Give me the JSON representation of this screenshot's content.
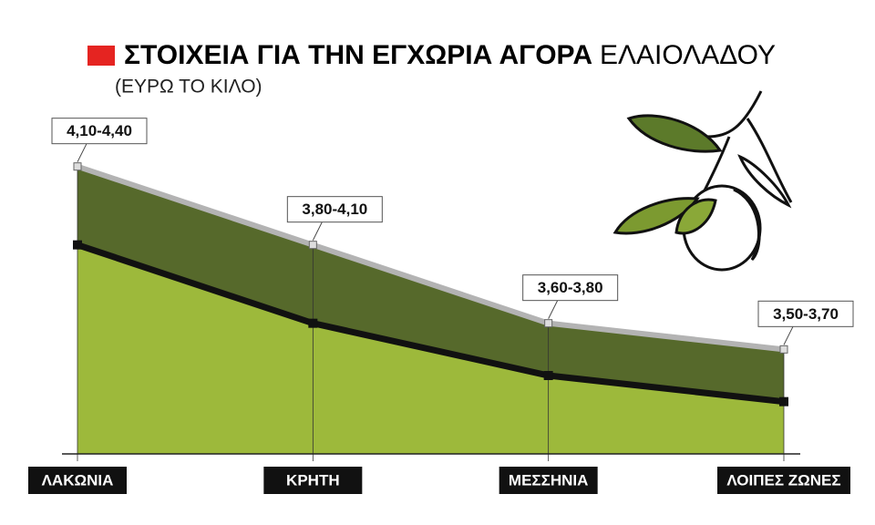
{
  "chart_data": {
    "type": "area",
    "title_bold": "ΣΤΟΙΧΕΙΑ ΓΙΑ ΤΗΝ ΕΓΧΩΡΙΑ ΑΓΟΡΑ",
    "title_regular": "ΕΛΑΙΟΛΑΔΟΥ",
    "subtitle": "(ΕΥΡΩ ΤΟ ΚΙΛΟ)",
    "categories": [
      "ΛΑΚΩΝΙΑ",
      "ΚΡΗΤΗ",
      "ΜΕΣΣΗΝΙΑ",
      "ΛΟΙΠΕΣ ΖΩΝΕΣ"
    ],
    "series": [
      {
        "color": "#9db93b",
        "line_color": "#111111",
        "values": [
          4.1,
          3.8,
          3.6,
          3.5
        ]
      },
      {
        "color": "#56692b",
        "line_color": "#b3b3b3",
        "values": [
          4.4,
          4.1,
          3.8,
          3.7
        ]
      }
    ],
    "value_labels": [
      "4,10-4,40",
      "3,80-4,10",
      "3,60-3,80",
      "3,50-3,70"
    ],
    "ylim": [
      3.3,
      4.5
    ]
  }
}
